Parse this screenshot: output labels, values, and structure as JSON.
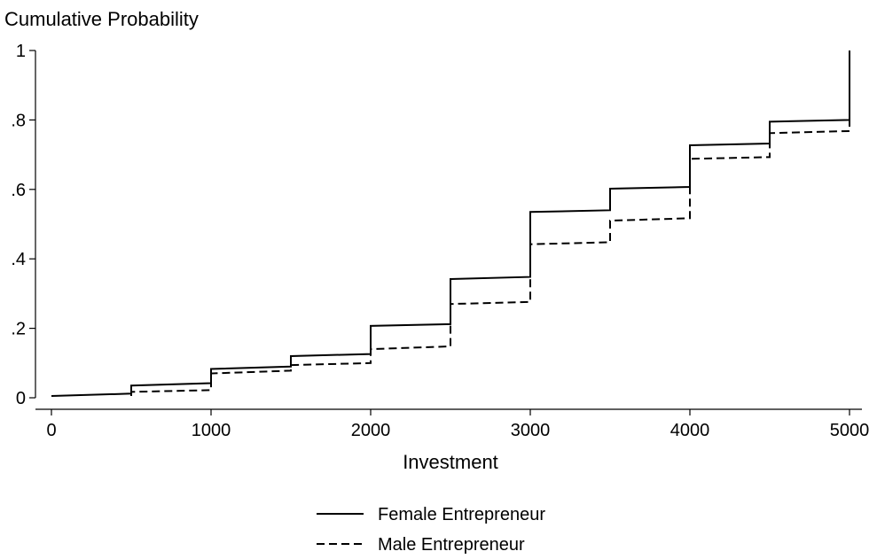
{
  "chart_data": {
    "type": "line",
    "title": "",
    "xlabel": "Investment",
    "ylabel": "Cumulative Probability",
    "xlim": [
      0,
      5000
    ],
    "ylim": [
      0,
      1
    ],
    "xticks": [
      0,
      1000,
      2000,
      3000,
      4000,
      5000
    ],
    "xtick_labels": [
      "0",
      "1000",
      "2000",
      "3000",
      "4000",
      "5000"
    ],
    "yticks": [
      0,
      0.2,
      0.4,
      0.6,
      0.8,
      1
    ],
    "ytick_labels": [
      "0",
      ".2",
      ".4",
      ".6",
      ".8",
      "1"
    ],
    "grid": false,
    "legend_position": "bottom",
    "series": [
      {
        "name": "Female Entrepreneur",
        "style": "solid",
        "color": "#000000",
        "x": [
          0,
          500,
          500,
          1000,
          1000,
          1500,
          1500,
          2000,
          2000,
          2500,
          2500,
          3000,
          3000,
          3500,
          3500,
          4000,
          4000,
          4500,
          4500,
          5000,
          5000
        ],
        "y": [
          0.005,
          0.012,
          0.035,
          0.042,
          0.083,
          0.09,
          0.12,
          0.126,
          0.207,
          0.212,
          0.342,
          0.348,
          0.535,
          0.54,
          0.602,
          0.607,
          0.727,
          0.732,
          0.795,
          0.8,
          1.0
        ]
      },
      {
        "name": "Male Entrepreneur",
        "style": "dashed",
        "color": "#000000",
        "x": [
          500,
          500,
          1000,
          1000,
          1500,
          1500,
          2000,
          2000,
          2500,
          2500,
          3000,
          3000,
          3500,
          3500,
          4000,
          4000,
          4500,
          4500,
          5000,
          5000
        ],
        "y": [
          0.005,
          0.017,
          0.022,
          0.07,
          0.078,
          0.094,
          0.1,
          0.14,
          0.148,
          0.27,
          0.276,
          0.442,
          0.448,
          0.51,
          0.517,
          0.688,
          0.693,
          0.762,
          0.768,
          1.0
        ]
      }
    ]
  }
}
